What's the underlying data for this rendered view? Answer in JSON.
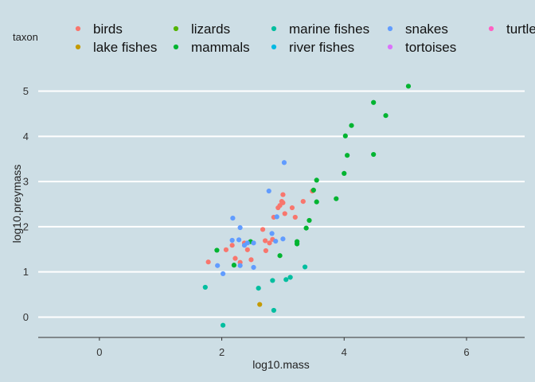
{
  "chart_data": {
    "type": "scatter",
    "title": "",
    "xlabel": "log10.mass",
    "ylabel": "log10.preymass",
    "xlim": [
      -1.0,
      6.95
    ],
    "ylim": [
      -0.45,
      5.45
    ],
    "xticks": [
      0,
      2,
      4,
      6
    ],
    "yticks": [
      0,
      1,
      2,
      3,
      4,
      5
    ],
    "grid": "horizontal major lines only",
    "legend": {
      "title": "taxon",
      "placement": "top",
      "columns": 5
    },
    "series": [
      {
        "name": "birds",
        "color": "#F8766D",
        "points": [
          [
            1.78,
            1.22
          ],
          [
            2.07,
            1.49
          ],
          [
            2.17,
            1.59
          ],
          [
            2.22,
            1.3
          ],
          [
            2.3,
            1.21
          ],
          [
            2.37,
            1.64
          ],
          [
            2.42,
            1.49
          ],
          [
            2.48,
            1.27
          ],
          [
            2.67,
            1.94
          ],
          [
            2.71,
            1.69
          ],
          [
            2.72,
            1.47
          ],
          [
            2.78,
            1.64
          ],
          [
            2.83,
            1.72
          ],
          [
            2.85,
            2.21
          ],
          [
            2.92,
            2.42
          ],
          [
            2.95,
            2.47
          ],
          [
            2.98,
            2.56
          ],
          [
            3.0,
            2.53
          ],
          [
            3.0,
            2.71
          ],
          [
            3.03,
            2.29
          ],
          [
            3.15,
            2.42
          ],
          [
            3.2,
            2.21
          ],
          [
            3.33,
            2.56
          ],
          [
            3.48,
            2.79
          ]
        ]
      },
      {
        "name": "lake fishes",
        "color": "#C49A00",
        "points": [
          [
            2.62,
            0.28
          ]
        ]
      },
      {
        "name": "lizards",
        "color": "#53B400",
        "points": []
      },
      {
        "name": "mammals",
        "color": "#00B431",
        "points": [
          [
            1.92,
            1.48
          ],
          [
            2.2,
            1.15
          ],
          [
            2.47,
            1.67
          ],
          [
            2.95,
            1.36
          ],
          [
            3.23,
            1.62
          ],
          [
            3.23,
            1.67
          ],
          [
            3.38,
            1.97
          ],
          [
            3.43,
            2.14
          ],
          [
            3.5,
            2.81
          ],
          [
            3.55,
            2.55
          ],
          [
            3.55,
            3.03
          ],
          [
            3.87,
            2.62
          ],
          [
            4.0,
            3.18
          ],
          [
            4.02,
            4.01
          ],
          [
            4.05,
            3.58
          ],
          [
            4.12,
            4.24
          ],
          [
            4.48,
            3.6
          ],
          [
            4.48,
            4.75
          ],
          [
            4.68,
            4.46
          ],
          [
            5.05,
            5.11
          ]
        ]
      },
      {
        "name": "marine fishes",
        "color": "#00BE9F",
        "points": [
          [
            1.73,
            0.66
          ],
          [
            2.02,
            -0.18
          ],
          [
            2.6,
            0.64
          ],
          [
            2.83,
            0.81
          ],
          [
            2.85,
            0.15
          ],
          [
            3.05,
            0.83
          ],
          [
            3.12,
            0.88
          ],
          [
            3.36,
            1.11
          ]
        ]
      },
      {
        "name": "river fishes",
        "color": "#00B9E3",
        "points": []
      },
      {
        "name": "snakes",
        "color": "#619CFF",
        "points": [
          [
            1.93,
            1.14
          ],
          [
            2.02,
            0.96
          ],
          [
            2.17,
            1.7
          ],
          [
            2.18,
            2.19
          ],
          [
            2.28,
            1.71
          ],
          [
            2.3,
            1.98
          ],
          [
            2.3,
            1.14
          ],
          [
            2.37,
            1.59
          ],
          [
            2.42,
            1.64
          ],
          [
            2.52,
            1.64
          ],
          [
            2.52,
            1.1
          ],
          [
            2.77,
            2.79
          ],
          [
            2.82,
            1.85
          ],
          [
            2.88,
            1.68
          ],
          [
            2.9,
            2.22
          ],
          [
            3.0,
            1.73
          ],
          [
            3.02,
            3.42
          ]
        ]
      },
      {
        "name": "tortoises",
        "color": "#DB72FB",
        "points": []
      },
      {
        "name": "turtles",
        "color": "#FF61C3",
        "points": []
      }
    ]
  }
}
